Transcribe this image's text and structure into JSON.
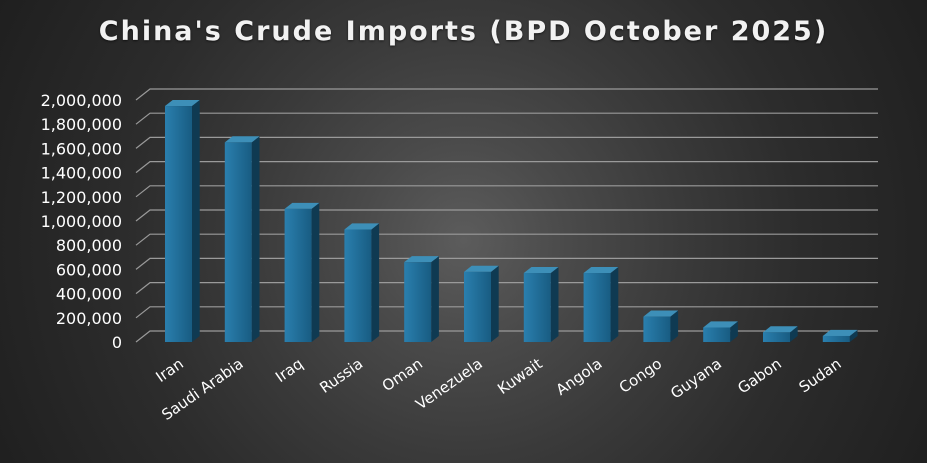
{
  "chart_data": {
    "type": "bar",
    "title": "China's Crude Imports (BPD October 2025)",
    "xlabel": "",
    "ylabel": "",
    "categories": [
      "Iran",
      "Saudi Arabia",
      "Iraq",
      "Russia",
      "Oman",
      "Venezuela",
      "Kuwait",
      "Angola",
      "Congo",
      "Guyana",
      "Gabon",
      "Sudan"
    ],
    "values": [
      1950000,
      1650000,
      1100000,
      930000,
      660000,
      580000,
      570000,
      570000,
      210000,
      120000,
      80000,
      50000
    ],
    "ylim": [
      0,
      2000000
    ],
    "yticks": [
      {
        "value": 0,
        "label": "0"
      },
      {
        "value": 200000,
        "label": "200,000"
      },
      {
        "value": 400000,
        "label": "400,000"
      },
      {
        "value": 600000,
        "label": "600,000"
      },
      {
        "value": 800000,
        "label": "800,000"
      },
      {
        "value": 1000000,
        "label": "1,000,000"
      },
      {
        "value": 1200000,
        "label": "1,200,000"
      },
      {
        "value": 1400000,
        "label": "1,400,000"
      },
      {
        "value": 1600000,
        "label": "1,600,000"
      },
      {
        "value": 1800000,
        "label": "1,800,000"
      },
      {
        "value": 2000000,
        "label": "2,000,000"
      }
    ],
    "grid": true,
    "legend": "none",
    "colors": {
      "bar_front": "#1d6a92",
      "bar_side": "#0f3a52",
      "bar_top": "#3d8fb8",
      "grid": "#9a9a9a"
    }
  }
}
